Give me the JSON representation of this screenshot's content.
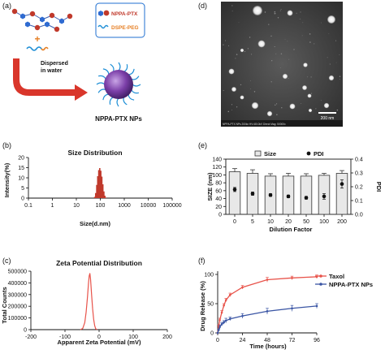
{
  "panel_labels": [
    "(a)",
    "(b)",
    "(c)",
    "(d)",
    "(e)",
    "(f)"
  ],
  "schematic": {
    "legend_items": [
      "NPPA-PTX",
      "DSPE-PEG"
    ],
    "plus": "+",
    "arrow_text_line1": "Dispersed",
    "arrow_text_line2": "in water",
    "caption": "NPPA-PTX NPs",
    "colors": {
      "ptx_red": "#c0392b",
      "peg_blue": "#1f8fd6",
      "drug_orange": "#e67e22",
      "arrow": "#d9362b",
      "np_core": "#7b3fa8"
    }
  },
  "micrograph": {
    "scale_bar_label": "200 nm",
    "footer_text": "NPPA-PTX NPs 200kx HV=80.0kV Direct Mag: 50000x"
  },
  "chart_data": [
    {
      "id": "size-distribution",
      "type": "bar",
      "title": "Size Distribution",
      "xlabel": "Size(d.nm)",
      "ylabel": "Intensity(%)",
      "xscale": "log",
      "xlim": [
        0.1,
        100000
      ],
      "xticks": [
        "0.1",
        "1",
        "10",
        "100",
        "1000",
        "10000",
        "100000"
      ],
      "ylim": [
        0,
        20
      ],
      "yticks": [
        0,
        5,
        10,
        15,
        20
      ],
      "x": [
        58,
        64,
        71,
        78,
        86,
        95,
        105,
        116,
        128,
        141,
        155,
        171
      ],
      "values": [
        0.6,
        2.5,
        6.5,
        10.8,
        13.8,
        14.8,
        13.5,
        10.6,
        6.8,
        3.3,
        1.2,
        0.3
      ],
      "color": "#c0392b"
    },
    {
      "id": "zeta-potential",
      "type": "line",
      "title": "Zeta Potential Distribution",
      "xlabel": "Apparent Zeta Potential (mV)",
      "ylabel": "Total Counts",
      "xlim": [
        -200,
        200
      ],
      "xticks": [
        -200,
        -100,
        0,
        100,
        200
      ],
      "ylim": [
        0,
        500000
      ],
      "yticks": [
        0,
        100000,
        200000,
        300000,
        400000,
        500000
      ],
      "x": [
        -55,
        -48,
        -42,
        -38,
        -34,
        -31,
        -29,
        -27,
        -25,
        -22,
        -19,
        -16,
        -13,
        -10,
        -6
      ],
      "values": [
        0,
        10000,
        60000,
        150000,
        280000,
        400000,
        460000,
        480000,
        430000,
        300000,
        180000,
        90000,
        35000,
        8000,
        0
      ],
      "color": "#e8534a"
    },
    {
      "id": "dilution",
      "type": "bar",
      "categories": [
        "0",
        "5",
        "10",
        "20",
        "50",
        "100",
        "200"
      ],
      "series": [
        {
          "name": "Size",
          "axis": "left",
          "values": [
            108,
            104,
            97,
            97,
            97,
            99,
            104
          ],
          "errors": [
            8,
            9,
            6,
            7,
            6,
            5,
            7
          ]
        },
        {
          "name": "PDI",
          "axis": "right",
          "values": [
            0.18,
            0.15,
            0.14,
            0.13,
            0.12,
            0.13,
            0.22
          ],
          "errors": [
            0.015,
            0.012,
            0.01,
            0.01,
            0.01,
            0.02,
            0.03
          ]
        }
      ],
      "xlabel": "Dilution Factor",
      "ylabel": "SIZE (nm)",
      "y2label": "PDI",
      "ylim": [
        0,
        140
      ],
      "yticks": [
        0,
        20,
        40,
        60,
        80,
        100,
        120,
        140
      ],
      "y2lim": [
        0,
        0.4
      ],
      "y2ticks": [
        "0.0",
        "0.1",
        "0.2",
        "0.3",
        "0.4"
      ],
      "legend": "top"
    },
    {
      "id": "drug-release",
      "type": "line",
      "xlabel": "Time (hours)",
      "ylabel": "Drug Release (%)",
      "xlim": [
        0,
        96
      ],
      "xticks": [
        0,
        24,
        48,
        72,
        96
      ],
      "ylim": [
        0,
        100
      ],
      "yticks": [
        0,
        50,
        100
      ],
      "legend": "top-right",
      "series": [
        {
          "name": "Taxol",
          "color": "#e8534a",
          "x": [
            0,
            1,
            2,
            4,
            6,
            8,
            12,
            24,
            48,
            72,
            96
          ],
          "values": [
            0,
            12,
            22,
            35,
            47,
            56,
            65,
            78,
            91,
            94,
            96
          ],
          "errors": [
            0,
            2,
            3,
            3,
            3,
            3,
            3,
            3,
            4,
            3,
            3
          ]
        },
        {
          "name": "NPPA-PTX NPs",
          "color": "#3a55a4",
          "x": [
            0,
            1,
            2,
            4,
            6,
            8,
            12,
            24,
            48,
            72,
            96
          ],
          "values": [
            0,
            5,
            10,
            15,
            18,
            21,
            24,
            29,
            37,
            42,
            46
          ],
          "errors": [
            0,
            2,
            3,
            3,
            3,
            4,
            3,
            4,
            5,
            5,
            4
          ]
        }
      ]
    }
  ]
}
